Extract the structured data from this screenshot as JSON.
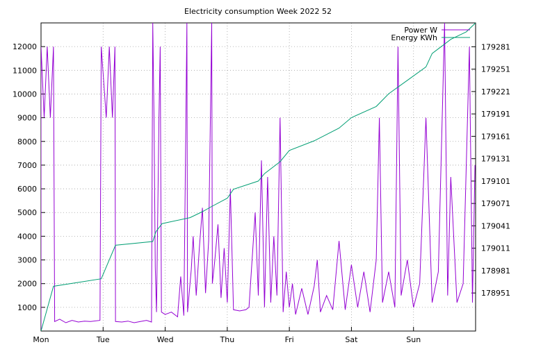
{
  "chart_data": {
    "type": "line",
    "title": "Electricity consumption Week 2022 52",
    "x_tick_labels": [
      "Mon",
      "Tue",
      "Wed",
      "Thu",
      "Fri",
      "Sat",
      "Sun"
    ],
    "y_left": {
      "ticks": [
        1000,
        2000,
        3000,
        4000,
        5000,
        6000,
        7000,
        8000,
        9000,
        10000,
        11000,
        12000
      ],
      "range": [
        0,
        13000
      ]
    },
    "y_right": {
      "ticks": [
        178951,
        178981,
        179011,
        179041,
        179071,
        179101,
        179131,
        179161,
        179191,
        179221,
        179251,
        179281
      ],
      "range": [
        178900,
        179313
      ]
    },
    "grid": true,
    "legend_position": "top-right",
    "series": [
      {
        "name": "Power W",
        "axis": "left",
        "color": "#9400d3",
        "points": [
          [
            0.0,
            0
          ],
          [
            0.0,
            12000
          ],
          [
            0.05,
            9000
          ],
          [
            0.1,
            12000
          ],
          [
            0.15,
            9000
          ],
          [
            0.2,
            12000
          ],
          [
            0.22,
            400
          ],
          [
            0.3,
            500
          ],
          [
            0.4,
            350
          ],
          [
            0.5,
            450
          ],
          [
            0.6,
            380
          ],
          [
            0.7,
            420
          ],
          [
            0.8,
            400
          ],
          [
            0.95,
            450
          ],
          [
            0.97,
            12000
          ],
          [
            1.05,
            9000
          ],
          [
            1.1,
            12000
          ],
          [
            1.15,
            9000
          ],
          [
            1.19,
            12000
          ],
          [
            1.2,
            400
          ],
          [
            1.3,
            380
          ],
          [
            1.4,
            420
          ],
          [
            1.5,
            350
          ],
          [
            1.6,
            400
          ],
          [
            1.7,
            450
          ],
          [
            1.78,
            380
          ],
          [
            1.8,
            13000
          ],
          [
            1.82,
            9000
          ],
          [
            1.84,
            2700
          ],
          [
            1.86,
            800
          ],
          [
            1.9,
            9000
          ],
          [
            1.92,
            12000
          ],
          [
            1.94,
            800
          ],
          [
            2.0,
            700
          ],
          [
            2.1,
            800
          ],
          [
            2.2,
            600
          ],
          [
            2.25,
            2300
          ],
          [
            2.3,
            650
          ],
          [
            2.35,
            13000
          ],
          [
            2.36,
            800
          ],
          [
            2.42,
            2600
          ],
          [
            2.45,
            4000
          ],
          [
            2.5,
            1500
          ],
          [
            2.55,
            3500
          ],
          [
            2.6,
            5200
          ],
          [
            2.65,
            1600
          ],
          [
            2.7,
            3800
          ],
          [
            2.75,
            13000
          ],
          [
            2.76,
            2000
          ],
          [
            2.8,
            3000
          ],
          [
            2.85,
            4500
          ],
          [
            2.9,
            1400
          ],
          [
            2.95,
            3500
          ],
          [
            3.0,
            1200
          ],
          [
            3.05,
            6000
          ],
          [
            3.1,
            900
          ],
          [
            3.2,
            850
          ],
          [
            3.3,
            900
          ],
          [
            3.35,
            1000
          ],
          [
            3.45,
            5000
          ],
          [
            3.5,
            1500
          ],
          [
            3.55,
            7200
          ],
          [
            3.6,
            1000
          ],
          [
            3.65,
            6500
          ],
          [
            3.7,
            1200
          ],
          [
            3.75,
            4000
          ],
          [
            3.8,
            1500
          ],
          [
            3.85,
            9000
          ],
          [
            3.9,
            800
          ],
          [
            3.95,
            2500
          ],
          [
            4.0,
            1000
          ],
          [
            4.05,
            2000
          ],
          [
            4.1,
            700
          ],
          [
            4.2,
            1800
          ],
          [
            4.3,
            700
          ],
          [
            4.4,
            1900
          ],
          [
            4.45,
            3000
          ],
          [
            4.5,
            800
          ],
          [
            4.6,
            1500
          ],
          [
            4.7,
            900
          ],
          [
            4.8,
            3800
          ],
          [
            4.9,
            900
          ],
          [
            5.0,
            2800
          ],
          [
            5.1,
            1000
          ],
          [
            5.2,
            2500
          ],
          [
            5.3,
            800
          ],
          [
            5.4,
            3000
          ],
          [
            5.45,
            9000
          ],
          [
            5.5,
            1200
          ],
          [
            5.6,
            2500
          ],
          [
            5.7,
            1000
          ],
          [
            5.75,
            12000
          ],
          [
            5.8,
            1500
          ],
          [
            5.9,
            3000
          ],
          [
            6.0,
            1000
          ],
          [
            6.1,
            2000
          ],
          [
            6.2,
            9000
          ],
          [
            6.3,
            1200
          ],
          [
            6.4,
            2500
          ],
          [
            6.5,
            13000
          ],
          [
            6.55,
            1500
          ],
          [
            6.6,
            6500
          ],
          [
            6.7,
            1200
          ],
          [
            6.8,
            2000
          ],
          [
            6.9,
            12000
          ],
          [
            6.95,
            1200
          ],
          [
            6.99,
            7000
          ]
        ]
      },
      {
        "name": "Energy KWh",
        "axis": "right",
        "color": "#009e73",
        "points": [
          [
            0.0,
            178900
          ],
          [
            0.2,
            178960
          ],
          [
            0.97,
            178970
          ],
          [
            1.2,
            179015
          ],
          [
            1.8,
            179020
          ],
          [
            1.85,
            179033
          ],
          [
            1.95,
            179044
          ],
          [
            2.4,
            179052
          ],
          [
            2.6,
            179060
          ],
          [
            2.75,
            179067
          ],
          [
            3.0,
            179078
          ],
          [
            3.1,
            179090
          ],
          [
            3.5,
            179101
          ],
          [
            3.6,
            179111
          ],
          [
            3.85,
            179127
          ],
          [
            4.0,
            179142
          ],
          [
            4.4,
            179155
          ],
          [
            4.8,
            179172
          ],
          [
            5.0,
            179186
          ],
          [
            5.4,
            179201
          ],
          [
            5.6,
            179218
          ],
          [
            5.9,
            179236
          ],
          [
            6.2,
            179254
          ],
          [
            6.3,
            179272
          ],
          [
            6.6,
            179291
          ],
          [
            6.75,
            179297
          ],
          [
            6.85,
            179301
          ],
          [
            7.0,
            179313
          ]
        ]
      }
    ]
  }
}
